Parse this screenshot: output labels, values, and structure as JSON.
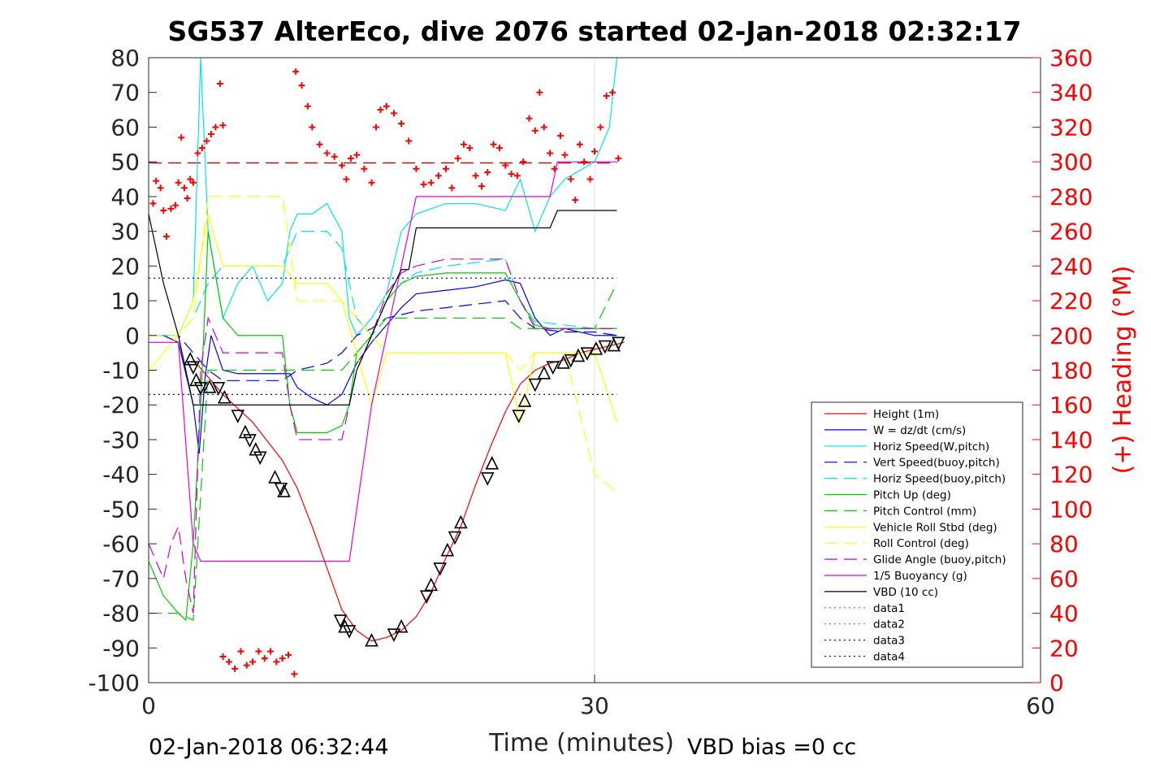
{
  "chart_data": {
    "type": "line",
    "title": "SG537 AlterEco, dive 2076 started 02-Jan-2018 02:32:17",
    "xlabel": "Time (minutes)",
    "ylabel_right": "(+) Heading (°M)",
    "xlim": [
      0,
      60
    ],
    "ylim": [
      -100,
      80
    ],
    "ylim_right": [
      0,
      360
    ],
    "x_ticks": [
      "0",
      "30",
      "60"
    ],
    "y_ticks": [
      "80",
      "70",
      "60",
      "50",
      "40",
      "30",
      "20",
      "10",
      "0",
      "-10",
      "-20",
      "-30",
      "-40",
      "-50",
      "-60",
      "-70",
      "-80",
      "-90",
      "-100"
    ],
    "y_ticks_right": [
      "360",
      "340",
      "320",
      "300",
      "280",
      "260",
      "240",
      "220",
      "200",
      "180",
      "160",
      "140",
      "120",
      "100",
      "80",
      "60",
      "40",
      "20",
      "0"
    ],
    "grid": "x only",
    "legend_position": "bottom-right",
    "footer_left": "02-Jan-2018 06:32:44",
    "footer_right": "VBD bias =0 cc",
    "colors": {
      "height": "#ff0000",
      "w": "#0000ff",
      "horiz": "#00e5e5",
      "pitch": "#00cc00",
      "roll": "#ffff00",
      "glide": "#cc00cc",
      "buoy": "#e500e5",
      "vbd": "#000000",
      "heading": "#ff0000",
      "bias": "#cc0000"
    },
    "series": [
      {
        "name": "Height (1m)",
        "style": "solid",
        "color": "#ff0000",
        "x": [
          3.0,
          5.0,
          7.0,
          9.0,
          10.0,
          11.0,
          12.0,
          13.0,
          14.0,
          15.0,
          16.0,
          17.0,
          18.0,
          19.0,
          20.0,
          21.0,
          22.0,
          23.0,
          24.0,
          25.0,
          26.0,
          27.0,
          28.0,
          29.0,
          30.0,
          31.0,
          32.0
        ],
        "y": [
          -7,
          -17,
          -25,
          -36,
          -44,
          -55,
          -67,
          -79,
          -85,
          -88,
          -87,
          -85,
          -81,
          -74,
          -64,
          -55,
          -43,
          -32,
          -22,
          -14,
          -10,
          -8,
          -7,
          -5,
          -4,
          -3,
          -2
        ]
      },
      {
        "name": "W = dz/dt (cm/s)",
        "style": "solid",
        "color": "#0000ff",
        "x": [
          0,
          1,
          2,
          3,
          3.4,
          3.8,
          4.2,
          4.6,
          5,
          6,
          8,
          9,
          9.5,
          10,
          11,
          12,
          13,
          14,
          15,
          16,
          17,
          18,
          20,
          22,
          24,
          25,
          26,
          27,
          28,
          30,
          31,
          31.5
        ],
        "y": [
          0,
          0,
          -2,
          -20,
          -34,
          -12,
          0,
          -5,
          -10,
          -11,
          -11,
          -11,
          -11,
          -15,
          -18,
          -20,
          -17,
          -8,
          -2,
          3,
          8,
          12,
          13,
          14,
          16,
          15,
          5,
          0,
          2,
          0,
          0,
          0
        ]
      },
      {
        "name": "Horiz Speed(W,pitch)",
        "style": "solid",
        "color": "#00e5e5",
        "x": [
          0,
          1,
          2,
          3,
          3.5,
          4,
          5,
          6,
          7,
          8,
          9,
          9.5,
          10,
          11,
          12,
          13,
          13.5,
          14,
          15,
          16,
          17,
          18,
          20,
          22,
          24,
          25,
          26,
          27,
          28,
          30,
          31,
          31.5
        ],
        "y": [
          0,
          0,
          0,
          10,
          80,
          30,
          5,
          15,
          20,
          10,
          15,
          30,
          35,
          35,
          38,
          30,
          5,
          0,
          5,
          12,
          30,
          35,
          38,
          38,
          36,
          45,
          30,
          40,
          45,
          50,
          60,
          80
        ]
      },
      {
        "name": "Vert Speed(buoy,pitch)",
        "style": "dashed",
        "color": "#0000ff",
        "x": [
          0,
          2,
          3,
          4,
          5,
          8,
          9,
          10,
          12,
          13,
          14,
          15,
          16,
          17,
          18,
          20,
          22,
          24,
          25,
          26,
          28,
          30,
          31.5
        ],
        "y": [
          0,
          0,
          -5,
          -10,
          -13,
          -13,
          -13,
          -10,
          -8,
          -5,
          0,
          2,
          5,
          6,
          7,
          8,
          9,
          10,
          5,
          2,
          1,
          1,
          0
        ]
      },
      {
        "name": "Horiz Speed(buoy,pitch)",
        "style": "dashed",
        "color": "#00e5e5",
        "x": [
          0,
          2,
          3,
          4,
          5,
          8,
          9,
          10,
          12,
          13,
          14,
          15,
          16,
          17,
          18,
          20,
          22,
          24,
          25,
          26,
          28,
          30,
          31.5
        ],
        "y": [
          0,
          0,
          5,
          15,
          20,
          20,
          20,
          30,
          30,
          25,
          5,
          0,
          10,
          15,
          18,
          20,
          21,
          22,
          10,
          4,
          3,
          2,
          2
        ]
      },
      {
        "name": "Pitch Up (deg)",
        "style": "solid",
        "color": "#00cc00",
        "x": [
          0,
          1,
          2,
          2.5,
          3,
          3.5,
          4,
          5,
          6,
          7,
          8,
          9,
          9.5,
          10,
          11,
          12,
          13,
          13.5,
          14,
          15,
          16,
          17,
          18,
          20,
          22,
          24,
          25,
          26,
          27,
          28,
          30,
          31,
          31.5
        ],
        "y": [
          -65,
          -75,
          -80,
          -82,
          -60,
          -20,
          30,
          5,
          0,
          0,
          0,
          0,
          -20,
          -28,
          -28,
          -28,
          -26,
          -20,
          -5,
          0,
          10,
          15,
          17,
          18,
          18,
          18,
          10,
          3,
          2,
          2,
          2,
          2,
          2
        ]
      },
      {
        "name": "Pitch Control (mm)",
        "style": "dashed",
        "color": "#00cc00",
        "x": [
          0,
          2,
          3,
          4,
          5,
          9,
          9.5,
          10,
          13,
          14,
          15,
          16,
          18,
          20,
          22,
          24,
          25,
          26,
          28,
          30,
          31.5
        ],
        "y": [
          -80,
          -80,
          -82,
          -10,
          -10,
          -10,
          -10,
          -10,
          -10,
          -5,
          0,
          5,
          5,
          5,
          5,
          5,
          2,
          2,
          2,
          2,
          15
        ]
      },
      {
        "name": "Vehicle Roll Stbd (deg)",
        "style": "solid",
        "color": "#ffff00",
        "x": [
          0,
          1,
          2,
          3,
          4,
          5,
          6,
          8,
          9,
          10,
          12,
          13,
          14,
          15,
          16,
          18,
          20,
          22,
          24,
          25,
          26,
          28,
          30,
          31.5
        ],
        "y": [
          -10,
          -5,
          0,
          10,
          35,
          20,
          20,
          20,
          20,
          15,
          15,
          10,
          -5,
          -20,
          -5,
          -5,
          -5,
          -5,
          -5,
          -25,
          -5,
          -5,
          -5,
          -25
        ]
      },
      {
        "name": "Roll Control (deg)",
        "style": "dashed",
        "color": "#ffff00",
        "x": [
          0,
          2,
          3,
          4,
          5,
          8,
          9,
          10,
          12,
          13,
          14,
          16,
          18,
          20,
          22,
          24,
          25,
          26,
          28,
          30,
          31.5
        ],
        "y": [
          0,
          0,
          5,
          40,
          40,
          40,
          40,
          10,
          10,
          10,
          5,
          -5,
          -5,
          -5,
          -5,
          -5,
          -10,
          -5,
          -5,
          -40,
          -45
        ]
      },
      {
        "name": "Glide Angle (buoy,pitch)",
        "style": "dashed",
        "color": "#cc00cc",
        "x": [
          0,
          1,
          1.5,
          2,
          2.5,
          3,
          3.5,
          4,
          5,
          6,
          8,
          9,
          9.5,
          10,
          12,
          13,
          14,
          15,
          16,
          17,
          18,
          20,
          22,
          24,
          25,
          26,
          28,
          30,
          31.5
        ],
        "y": [
          -60,
          -70,
          -60,
          -55,
          -70,
          -80,
          -10,
          5,
          -5,
          -5,
          -5,
          -5,
          -20,
          -30,
          -30,
          -30,
          -10,
          0,
          12,
          18,
          20,
          22,
          22,
          22,
          10,
          2,
          2,
          2,
          2
        ]
      },
      {
        "name": "1/5 Buoyancy (g)",
        "style": "solid",
        "color": "#e500e5",
        "x": [
          0,
          1,
          2,
          3,
          3.5,
          4,
          6,
          8,
          10,
          12,
          13,
          13.5,
          14,
          15,
          16,
          17,
          18,
          18.5,
          20,
          22,
          24,
          26,
          27,
          27.5,
          28,
          30,
          31.5
        ],
        "y": [
          -2,
          -2,
          -2,
          -60,
          -65,
          -65,
          -65,
          -65,
          -65,
          -65,
          -65,
          -65,
          -50,
          -20,
          0,
          20,
          40,
          40,
          40,
          40,
          40,
          40,
          40,
          50,
          50,
          50,
          50
        ]
      },
      {
        "name": "VBD (10 cc)",
        "style": "solid",
        "color": "#000000",
        "x": [
          0,
          0.5,
          1,
          2,
          3,
          4,
          5,
          8,
          10,
          12,
          13.5,
          14,
          15,
          16,
          17,
          17.5,
          18,
          20,
          22,
          24,
          26,
          27,
          27.5,
          28,
          30,
          31.5
        ],
        "y": [
          35,
          25,
          15,
          0,
          -20,
          -20,
          -20,
          -20,
          -20,
          -20,
          -20,
          -10,
          0,
          10,
          19,
          19,
          31,
          31,
          31,
          31,
          31,
          31,
          36,
          36,
          36,
          36
        ]
      },
      {
        "name": "data1",
        "style": "dotted",
        "color": "#00cc00",
        "x": [],
        "y": []
      },
      {
        "name": "data2",
        "style": "dotted",
        "color": "#00cc00",
        "x": [],
        "y": []
      },
      {
        "name": "data3",
        "style": "dotted",
        "color": "#0000ff",
        "x": [
          0,
          31.5
        ],
        "y": [
          16.5,
          16.5
        ]
      },
      {
        "name": "data4",
        "style": "dotted",
        "color": "#0000ff",
        "x": [
          0,
          31.5
        ],
        "y": [
          -17,
          -17
        ]
      }
    ],
    "bias_line": {
      "x": [
        0,
        31.5
      ],
      "y": [
        49.7,
        49.7
      ],
      "style": "dashed",
      "color": "#cc0000"
    },
    "triangles": [
      {
        "x": 2.8,
        "y": -7
      },
      {
        "x": 3.0,
        "y": -9
      },
      {
        "x": 3.2,
        "y": -13
      },
      {
        "x": 3.5,
        "y": -15
      },
      {
        "x": 4.1,
        "y": -15
      },
      {
        "x": 4.7,
        "y": -15
      },
      {
        "x": 5.1,
        "y": -18
      },
      {
        "x": 6.0,
        "y": -23
      },
      {
        "x": 6.5,
        "y": -28
      },
      {
        "x": 6.8,
        "y": -30
      },
      {
        "x": 7.2,
        "y": -33
      },
      {
        "x": 7.5,
        "y": -35
      },
      {
        "x": 8.5,
        "y": -41
      },
      {
        "x": 8.9,
        "y": -44
      },
      {
        "x": 9.1,
        "y": -45
      },
      {
        "x": 12.9,
        "y": -82
      },
      {
        "x": 13.2,
        "y": -84
      },
      {
        "x": 13.5,
        "y": -85
      },
      {
        "x": 15.0,
        "y": -88
      },
      {
        "x": 16.5,
        "y": -86
      },
      {
        "x": 17.0,
        "y": -84
      },
      {
        "x": 18.7,
        "y": -75
      },
      {
        "x": 19.0,
        "y": -72
      },
      {
        "x": 19.6,
        "y": -67
      },
      {
        "x": 20.1,
        "y": -62
      },
      {
        "x": 20.6,
        "y": -58
      },
      {
        "x": 21.0,
        "y": -54
      },
      {
        "x": 22.8,
        "y": -41
      },
      {
        "x": 23.1,
        "y": -37
      },
      {
        "x": 24.9,
        "y": -23
      },
      {
        "x": 25.3,
        "y": -19
      },
      {
        "x": 26.0,
        "y": -14
      },
      {
        "x": 26.6,
        "y": -11
      },
      {
        "x": 27.2,
        "y": -9
      },
      {
        "x": 27.9,
        "y": -8
      },
      {
        "x": 28.4,
        "y": -7
      },
      {
        "x": 28.9,
        "y": -6
      },
      {
        "x": 29.5,
        "y": -5
      },
      {
        "x": 30.1,
        "y": -4
      },
      {
        "x": 30.7,
        "y": -3
      },
      {
        "x": 31.3,
        "y": -3
      },
      {
        "x": 31.6,
        "y": -2
      }
    ],
    "heading_points": [
      {
        "x": 0.3,
        "y": 276
      },
      {
        "x": 0.5,
        "y": 289
      },
      {
        "x": 0.8,
        "y": 285
      },
      {
        "x": 1.0,
        "y": 272
      },
      {
        "x": 1.2,
        "y": 257
      },
      {
        "x": 1.5,
        "y": 273
      },
      {
        "x": 1.8,
        "y": 275
      },
      {
        "x": 2.0,
        "y": 288
      },
      {
        "x": 2.2,
        "y": 314
      },
      {
        "x": 2.4,
        "y": 285
      },
      {
        "x": 2.6,
        "y": 279
      },
      {
        "x": 2.8,
        "y": 290
      },
      {
        "x": 3.0,
        "y": 288
      },
      {
        "x": 3.3,
        "y": 305
      },
      {
        "x": 3.6,
        "y": 308
      },
      {
        "x": 3.9,
        "y": 312
      },
      {
        "x": 4.2,
        "y": 316
      },
      {
        "x": 4.5,
        "y": 320
      },
      {
        "x": 4.8,
        "y": 345
      },
      {
        "x": 5.0,
        "y": 321
      },
      {
        "x": 5.0,
        "y": 15
      },
      {
        "x": 5.4,
        "y": 12
      },
      {
        "x": 5.8,
        "y": 8
      },
      {
        "x": 6.2,
        "y": 18
      },
      {
        "x": 6.6,
        "y": 10
      },
      {
        "x": 7.0,
        "y": 12
      },
      {
        "x": 7.4,
        "y": 18
      },
      {
        "x": 7.8,
        "y": 14
      },
      {
        "x": 8.2,
        "y": 18
      },
      {
        "x": 8.6,
        "y": 12
      },
      {
        "x": 9.0,
        "y": 14
      },
      {
        "x": 9.4,
        "y": 16
      },
      {
        "x": 9.8,
        "y": 5
      },
      {
        "x": 9.9,
        "y": 352
      },
      {
        "x": 10.3,
        "y": 344
      },
      {
        "x": 10.7,
        "y": 332
      },
      {
        "x": 11.0,
        "y": 320
      },
      {
        "x": 11.5,
        "y": 310
      },
      {
        "x": 12.0,
        "y": 305
      },
      {
        "x": 12.5,
        "y": 303
      },
      {
        "x": 13.0,
        "y": 298
      },
      {
        "x": 13.3,
        "y": 290
      },
      {
        "x": 13.6,
        "y": 302
      },
      {
        "x": 14.0,
        "y": 304
      },
      {
        "x": 14.5,
        "y": 296
      },
      {
        "x": 15.0,
        "y": 288
      },
      {
        "x": 15.3,
        "y": 320
      },
      {
        "x": 15.6,
        "y": 330
      },
      {
        "x": 16.0,
        "y": 332
      },
      {
        "x": 16.5,
        "y": 328
      },
      {
        "x": 17.0,
        "y": 322
      },
      {
        "x": 17.5,
        "y": 312
      },
      {
        "x": 18.0,
        "y": 296
      },
      {
        "x": 18.5,
        "y": 287
      },
      {
        "x": 19.0,
        "y": 288
      },
      {
        "x": 19.5,
        "y": 292
      },
      {
        "x": 20.0,
        "y": 296
      },
      {
        "x": 20.4,
        "y": 285
      },
      {
        "x": 20.8,
        "y": 302
      },
      {
        "x": 21.2,
        "y": 310
      },
      {
        "x": 21.6,
        "y": 308
      },
      {
        "x": 22.0,
        "y": 292
      },
      {
        "x": 22.4,
        "y": 286
      },
      {
        "x": 22.8,
        "y": 294
      },
      {
        "x": 23.2,
        "y": 310
      },
      {
        "x": 23.6,
        "y": 308
      },
      {
        "x": 24.0,
        "y": 298
      },
      {
        "x": 24.4,
        "y": 293
      },
      {
        "x": 24.8,
        "y": 292
      },
      {
        "x": 25.2,
        "y": 300
      },
      {
        "x": 25.6,
        "y": 325
      },
      {
        "x": 26.0,
        "y": 318
      },
      {
        "x": 26.3,
        "y": 340
      },
      {
        "x": 26.6,
        "y": 320
      },
      {
        "x": 27.0,
        "y": 305
      },
      {
        "x": 27.3,
        "y": 296
      },
      {
        "x": 27.7,
        "y": 315
      },
      {
        "x": 28.0,
        "y": 304
      },
      {
        "x": 28.4,
        "y": 290
      },
      {
        "x": 28.7,
        "y": 278
      },
      {
        "x": 29.0,
        "y": 310
      },
      {
        "x": 29.3,
        "y": 300
      },
      {
        "x": 29.7,
        "y": 290
      },
      {
        "x": 30.0,
        "y": 306
      },
      {
        "x": 30.4,
        "y": 320
      },
      {
        "x": 30.8,
        "y": 338
      },
      {
        "x": 31.2,
        "y": 340
      },
      {
        "x": 31.6,
        "y": 302
      }
    ]
  }
}
